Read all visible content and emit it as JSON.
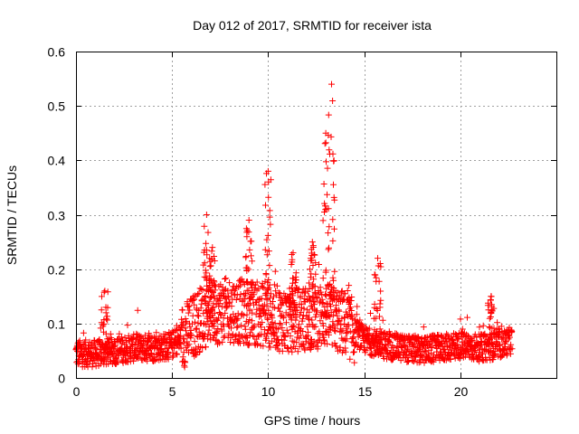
{
  "chart_data": {
    "type": "scatter",
    "title": "Day 012 of 2017, SRMTID for receiver ista",
    "xlabel": "GPS time / hours",
    "ylabel": "SRMTID / TECUs",
    "xlim": [
      0,
      25
    ],
    "ylim": [
      0,
      0.6
    ],
    "xticks": [
      "0",
      "5",
      "10",
      "15",
      "20"
    ],
    "yticks": [
      "0",
      "0.1",
      "0.2",
      "0.3",
      "0.4",
      "0.5",
      "0.6"
    ],
    "grid": true,
    "marker": "plus",
    "color": "#ff0000",
    "baseline_profile": {
      "x": [
        0,
        1,
        2,
        3,
        4,
        5,
        5.5,
        6,
        6.5,
        7,
        8,
        9,
        10,
        11,
        12,
        13,
        14,
        14.5,
        15,
        16,
        17,
        18,
        19,
        20,
        21,
        22,
        22.7
      ],
      "y": [
        0.045,
        0.045,
        0.05,
        0.055,
        0.055,
        0.06,
        0.075,
        0.09,
        0.11,
        0.12,
        0.125,
        0.12,
        0.115,
        0.105,
        0.11,
        0.115,
        0.1,
        0.085,
        0.07,
        0.06,
        0.055,
        0.05,
        0.055,
        0.06,
        0.055,
        0.06,
        0.07
      ]
    },
    "spikes": [
      {
        "x": 1.5,
        "y": 0.16
      },
      {
        "x": 6.8,
        "y": 0.3
      },
      {
        "x": 7.1,
        "y": 0.24
      },
      {
        "x": 9.0,
        "y": 0.29
      },
      {
        "x": 10.0,
        "y": 0.38
      },
      {
        "x": 11.3,
        "y": 0.23
      },
      {
        "x": 12.3,
        "y": 0.25
      },
      {
        "x": 13.0,
        "y": 0.45
      },
      {
        "x": 13.3,
        "y": 0.54
      },
      {
        "x": 15.7,
        "y": 0.22
      },
      {
        "x": 21.6,
        "y": 0.15
      }
    ]
  }
}
